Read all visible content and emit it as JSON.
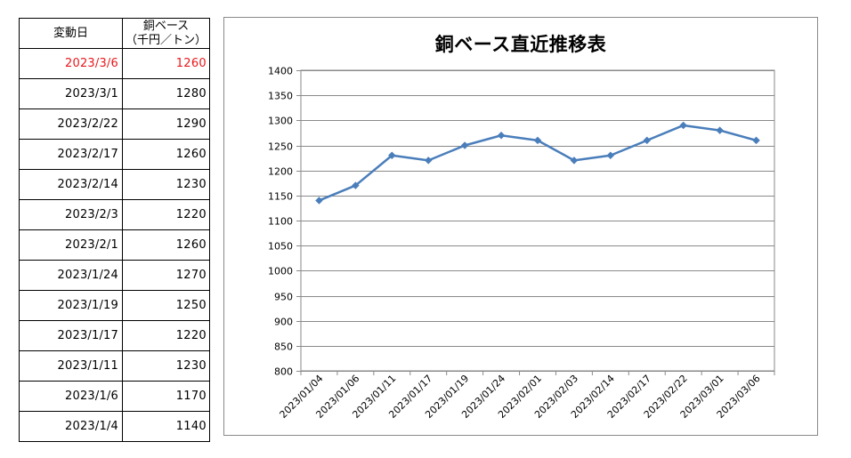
{
  "table": {
    "headers": {
      "date": "変動日",
      "base_line1": "銅ベース",
      "base_line2": "（千円／トン）"
    },
    "rows": [
      {
        "date": "2023/3/6",
        "price": "1260"
      },
      {
        "date": "2023/3/1",
        "price": "1280"
      },
      {
        "date": "2023/2/22",
        "price": "1290"
      },
      {
        "date": "2023/2/17",
        "price": "1260"
      },
      {
        "date": "2023/2/14",
        "price": "1230"
      },
      {
        "date": "2023/2/3",
        "price": "1220"
      },
      {
        "date": "2023/2/1",
        "price": "1260"
      },
      {
        "date": "2023/1/24",
        "price": "1270"
      },
      {
        "date": "2023/1/19",
        "price": "1250"
      },
      {
        "date": "2023/1/17",
        "price": "1220"
      },
      {
        "date": "2023/1/11",
        "price": "1230"
      },
      {
        "date": "2023/1/6",
        "price": "1170"
      },
      {
        "date": "2023/1/4",
        "price": "1140"
      }
    ],
    "highlight_color": "#e8191c"
  },
  "chart_data": {
    "type": "line",
    "title": "銅ベース直近推移表",
    "categories": [
      "2023/01/04",
      "2023/01/06",
      "2023/01/11",
      "2023/01/17",
      "2023/01/19",
      "2023/01/24",
      "2023/02/01",
      "2023/02/03",
      "2023/02/14",
      "2023/02/17",
      "2023/02/22",
      "2023/03/01",
      "2023/03/06"
    ],
    "series": [
      {
        "values": [
          1140,
          1170,
          1230,
          1220,
          1250,
          1270,
          1260,
          1220,
          1230,
          1260,
          1290,
          1280,
          1260
        ],
        "color": "#4a7ebb"
      }
    ],
    "xlabel": "",
    "ylabel": "",
    "ylim": [
      800,
      1400
    ],
    "yticks": [
      800,
      850,
      900,
      950,
      1000,
      1050,
      1100,
      1150,
      1200,
      1250,
      1300,
      1350,
      1400
    ],
    "grid": "horizontal",
    "legend": "none",
    "marker": "diamond"
  }
}
